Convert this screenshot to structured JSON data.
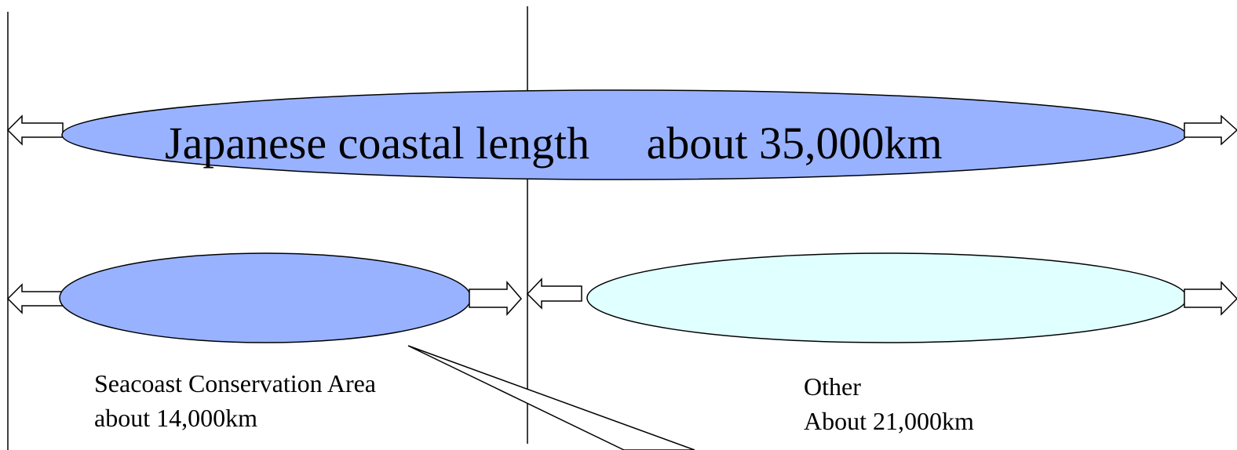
{
  "total": {
    "label": "Japanese coastal length",
    "value": "about 35,000km"
  },
  "segments": [
    {
      "name": "Seacoast Conservation Area",
      "value": "about 14,000km",
      "color": "#99b2ff"
    },
    {
      "name": "Other",
      "value": "About 21,000km",
      "color": "#e0ffff"
    }
  ],
  "total_color": "#99b2ff"
}
